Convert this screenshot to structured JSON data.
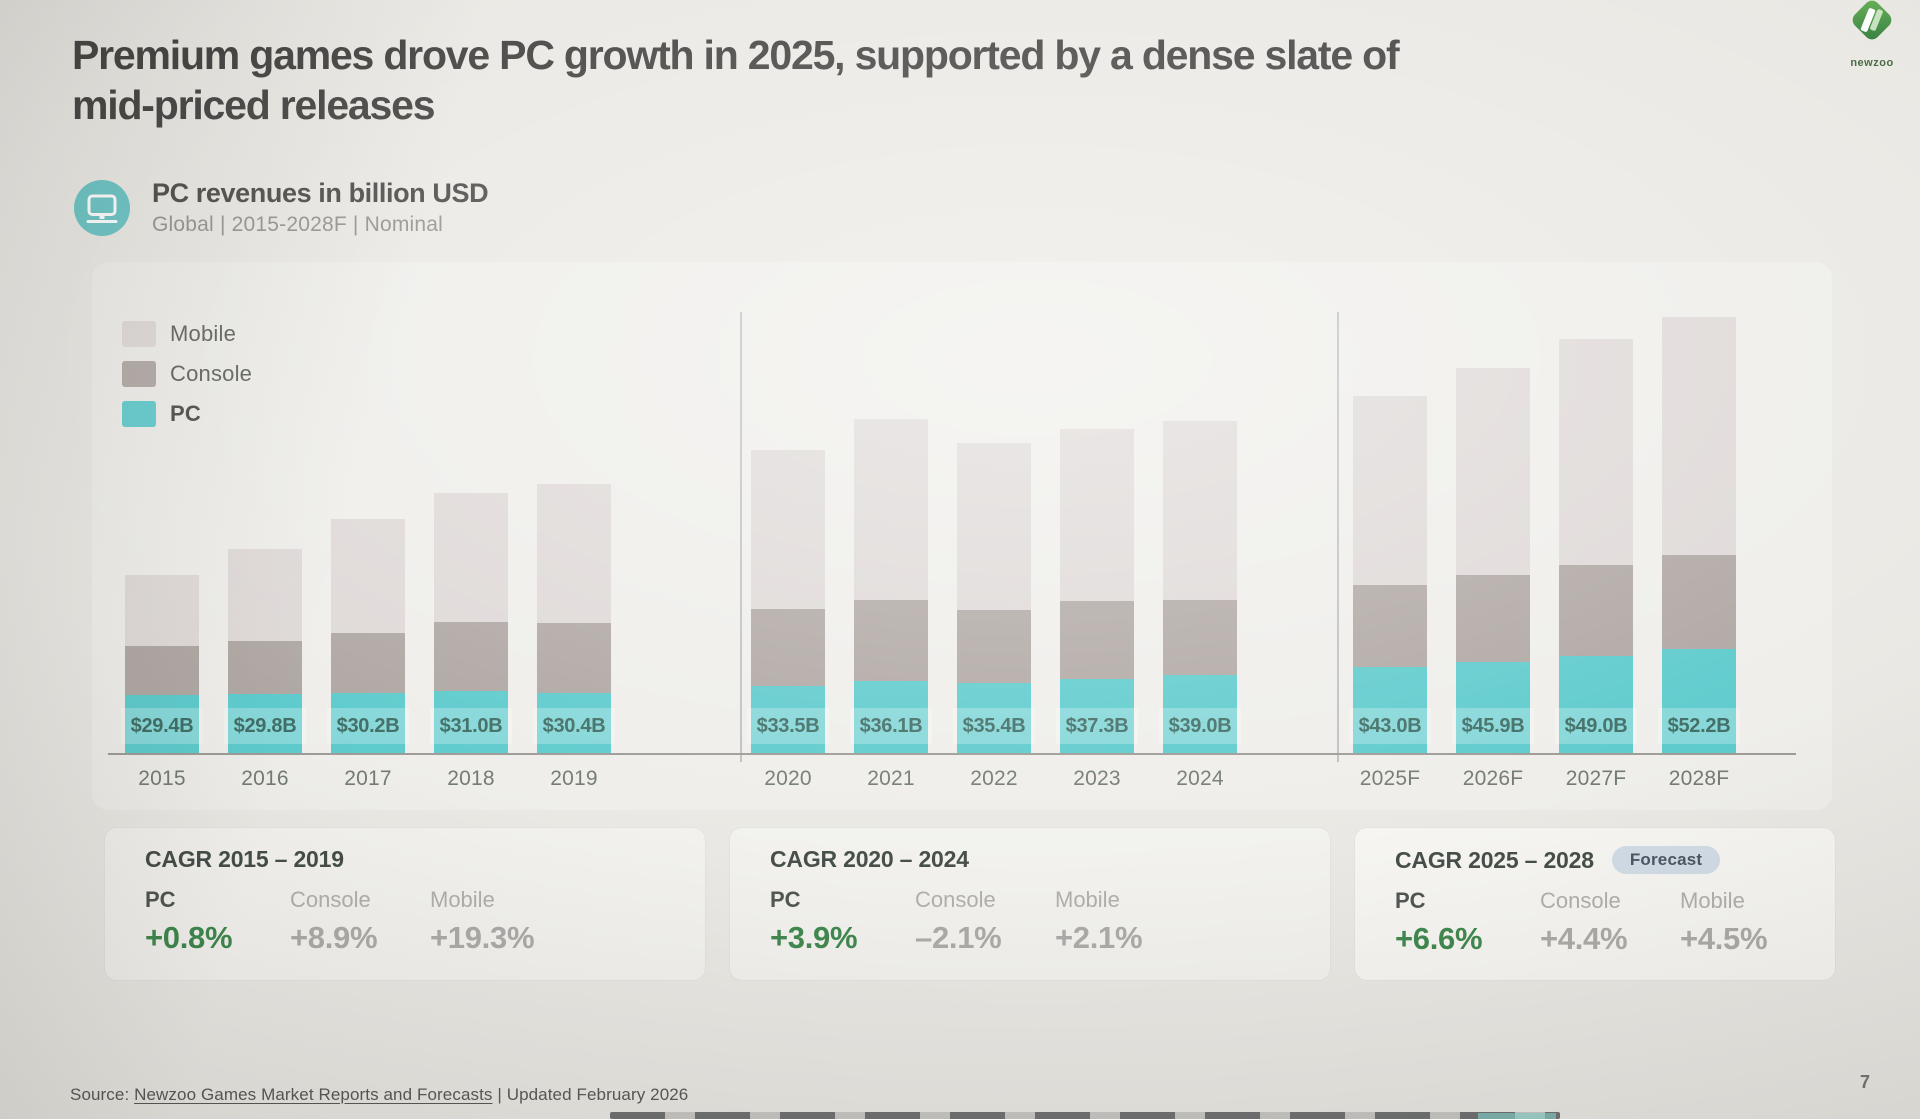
{
  "slide": {
    "title_line1": "Premium games drove PC growth in 2025, supported by a dense slate of",
    "title_line2": "mid-priced releases",
    "page_number": "7"
  },
  "logo": {
    "brand": "newzoo"
  },
  "chart_header": {
    "title": "PC revenues in billion USD",
    "subtitle": "Global | 2015-2028F | Nominal"
  },
  "legend": [
    {
      "label": "Mobile",
      "color": "#dbd5d3"
    },
    {
      "label": "Console",
      "color": "#a69d98"
    },
    {
      "label": "PC",
      "color": "#4cc5c7"
    }
  ],
  "chart_data": {
    "type": "bar",
    "stacked": true,
    "unit": "billion USD",
    "title": "PC revenues in billion USD",
    "subtitle": "Global | 2015-2028F | Nominal",
    "legend_position": "top-left",
    "gridlines": false,
    "ylim": [
      0,
      230
    ],
    "categories": [
      "2015",
      "2016",
      "2017",
      "2018",
      "2019",
      "2020",
      "2021",
      "2022",
      "2023",
      "2024",
      "2025F",
      "2026F",
      "2027F",
      "2028F"
    ],
    "group_sizes": [
      5,
      5,
      4
    ],
    "series": [
      {
        "name": "PC",
        "color": "#4cc5c7",
        "estimated": false,
        "values": [
          29.4,
          29.8,
          30.2,
          31.0,
          30.4,
          33.5,
          36.1,
          35.4,
          37.3,
          39.0,
          43.0,
          45.9,
          49.0,
          52.2
        ],
        "labels": [
          "$29.4B",
          "$29.8B",
          "$30.2B",
          "$31.0B",
          "$30.4B",
          "$33.5B",
          "$36.1B",
          "$35.4B",
          "$37.3B",
          "$39.0B",
          "$43.0B",
          "$45.9B",
          "$49.0B",
          "$52.2B"
        ]
      },
      {
        "name": "Console",
        "color": "#a69d98",
        "estimated": true,
        "values": [
          24.5,
          26.5,
          30.0,
          35.0,
          35.0,
          39.0,
          41.0,
          36.5,
          39.0,
          38.0,
          41.5,
          43.5,
          45.5,
          47.5
        ]
      },
      {
        "name": "Mobile",
        "color": "#dbd5d3",
        "estimated": true,
        "values": [
          35.5,
          46.5,
          57.5,
          64.5,
          70.0,
          80.0,
          91.0,
          84.0,
          86.5,
          90.0,
          95.0,
          104.0,
          113.5,
          119.5
        ]
      }
    ],
    "note": "Only PC segment values are labeled on the slide; Console and Mobile values are estimated from bar heights."
  },
  "cagr_cards": [
    {
      "title": "CAGR 2015 – 2019",
      "badge": "",
      "metrics": [
        {
          "label": "PC",
          "value": "+0.8%"
        },
        {
          "label": "Console",
          "value": "+8.9%"
        },
        {
          "label": "Mobile",
          "value": "+19.3%"
        }
      ]
    },
    {
      "title": "CAGR 2020 – 2024",
      "badge": "",
      "metrics": [
        {
          "label": "PC",
          "value": "+3.9%"
        },
        {
          "label": "Console",
          "value": "–2.1%"
        },
        {
          "label": "Mobile",
          "value": "+2.1%"
        }
      ]
    },
    {
      "title": "CAGR 2025 – 2028",
      "badge": "Forecast",
      "metrics": [
        {
          "label": "PC",
          "value": "+6.6%"
        },
        {
          "label": "Console",
          "value": "+4.4%"
        },
        {
          "label": "Mobile",
          "value": "+4.5%"
        }
      ]
    }
  ],
  "footer": {
    "source_prefix": "Source: ",
    "source_link": "Newzoo Games Market Reports and Forecasts",
    "source_suffix": " | Updated February 2026"
  },
  "colors": {
    "accent_teal": "#4cc5c7",
    "console_gray": "#a69d98",
    "mobile_gray": "#dbd5d3",
    "cagr_green": "#2e7d3e",
    "badge_bg": "#cdd8e3",
    "slide_bg": "#e8e6e1"
  }
}
